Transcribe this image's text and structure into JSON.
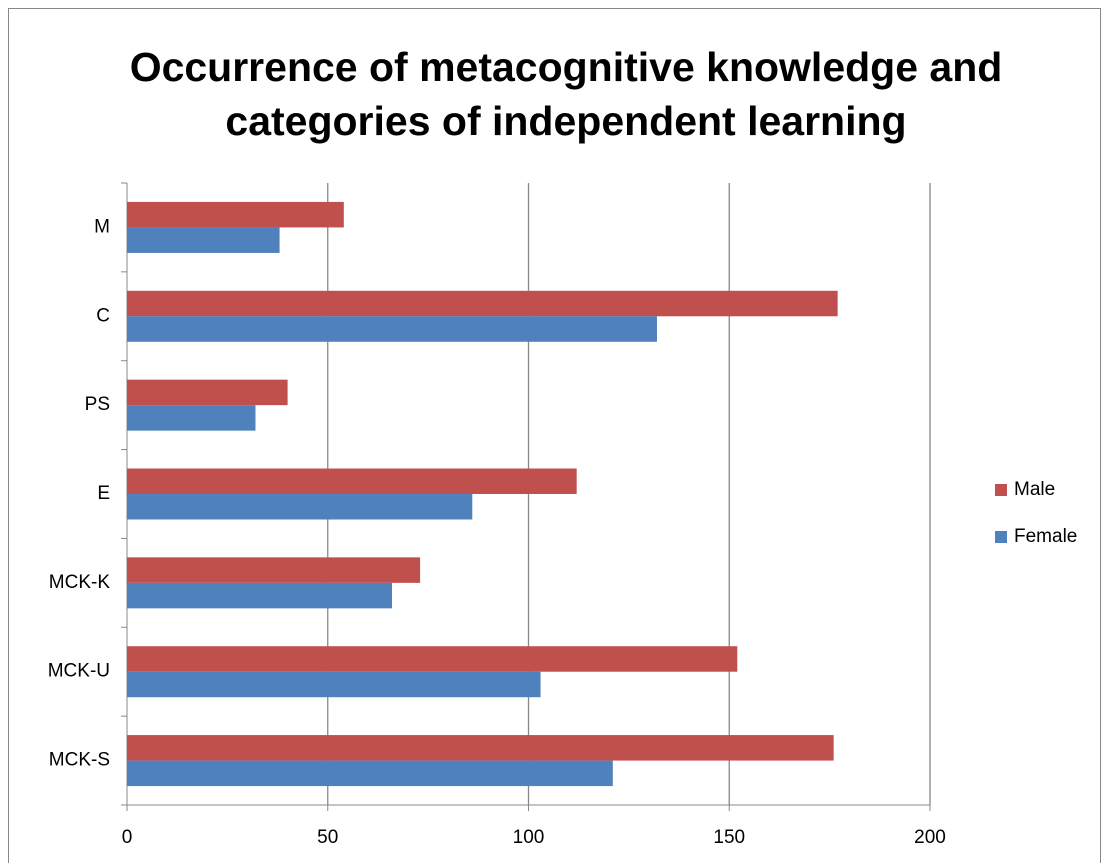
{
  "chart_data": {
    "type": "hbar",
    "title": "Occurrence of metacognitive knowledge and categories of independent learning",
    "categories": [
      "M",
      "C",
      "PS",
      "E",
      "MCK-K",
      "MCK-U",
      "MCK-S"
    ],
    "series": [
      {
        "name": "Male",
        "color": "#c0504d",
        "values": [
          54,
          177,
          40,
          112,
          73,
          152,
          176
        ]
      },
      {
        "name": "Female",
        "color": "#4f81bd",
        "values": [
          38,
          132,
          32,
          86,
          66,
          103,
          121
        ]
      }
    ],
    "xlim": [
      0,
      200
    ],
    "xticks": [
      0,
      50,
      100,
      150,
      200
    ],
    "grid": true,
    "legend": "right"
  }
}
